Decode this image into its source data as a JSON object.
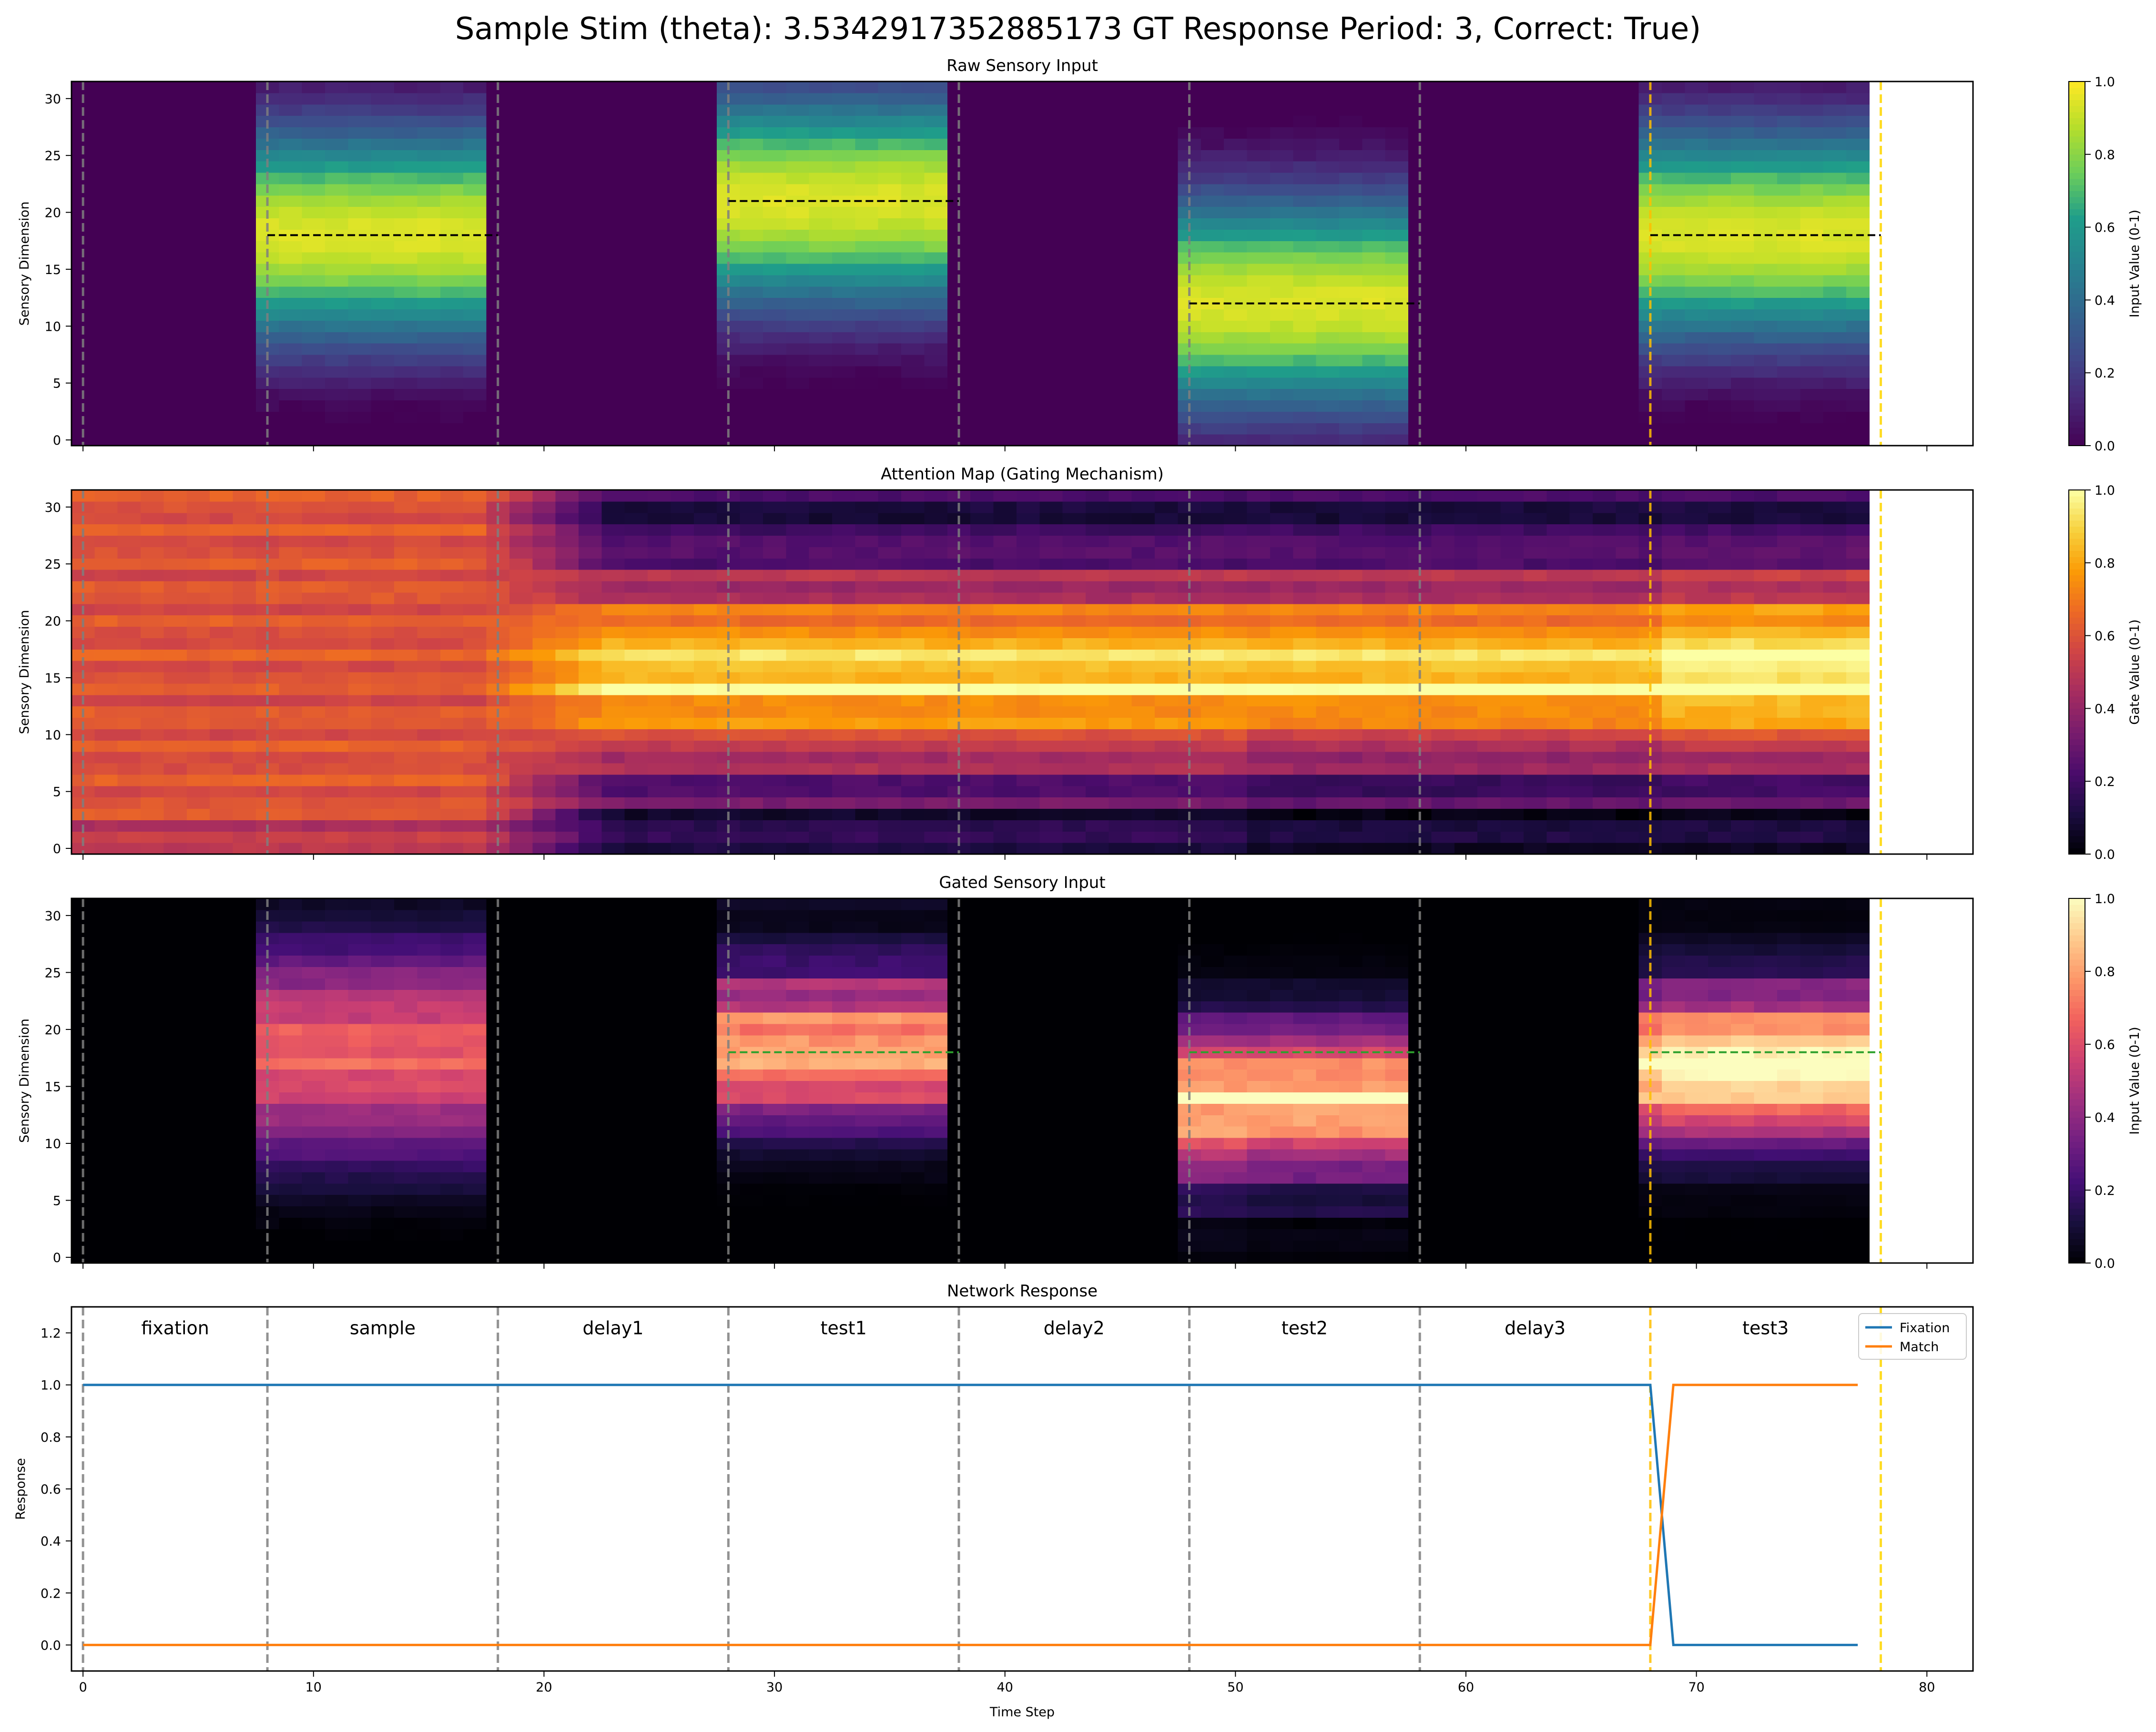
{
  "chart_data": {
    "suptitle": "Sample Stim (theta): 3.5342917352885173  GT Response Period: 3, Correct: True)",
    "x_label": "Time Step",
    "x_ticks": [
      0,
      10,
      20,
      30,
      40,
      50,
      60,
      70,
      80
    ],
    "xlim": [
      -0.5,
      82
    ],
    "phase_boundaries": [
      0,
      8,
      18,
      28,
      38,
      48,
      58,
      68
    ],
    "response_marker": 78,
    "phases": [
      {
        "name": "fixation",
        "start": 0,
        "end": 8
      },
      {
        "name": "sample",
        "start": 8,
        "end": 18
      },
      {
        "name": "delay1",
        "start": 18,
        "end": 28
      },
      {
        "name": "test1",
        "start": 28,
        "end": 38
      },
      {
        "name": "delay2",
        "start": 38,
        "end": 48
      },
      {
        "name": "test2",
        "start": 48,
        "end": 58
      },
      {
        "name": "delay3",
        "start": 58,
        "end": 68
      },
      {
        "name": "test3",
        "start": 68,
        "end": 78
      }
    ],
    "heatmaps": [
      {
        "type": "heatmap",
        "title": "Raw Sensory Input",
        "ylabel": "Sensory Dimension",
        "y_ticks": [
          0,
          5,
          10,
          15,
          20,
          25,
          30
        ],
        "ylim": [
          -0.5,
          31.5
        ],
        "colormap": "viridis",
        "colorbar_label": "Input Value (0-1)",
        "colorbar_ticks": [
          "0.0",
          "0.2",
          "0.4",
          "0.6",
          "0.8",
          "1.0"
        ],
        "stimuli": [
          {
            "start": 7.5,
            "end": 17.5,
            "center": 18
          },
          {
            "start": 27.5,
            "end": 37.5,
            "center": 21
          },
          {
            "start": 47.5,
            "end": 57.5,
            "center": 12
          },
          {
            "start": 67.5,
            "end": 77.5,
            "center": 18
          }
        ],
        "center_lines": [
          {
            "x0": 8,
            "x1": 18,
            "y": 18,
            "color": "#000000"
          },
          {
            "x0": 28,
            "x1": 38,
            "y": 21,
            "color": "#000000"
          },
          {
            "x0": 48,
            "x1": 58,
            "y": 12,
            "color": "#000000"
          },
          {
            "x0": 68,
            "x1": 78,
            "y": 18,
            "color": "#000000"
          }
        ]
      },
      {
        "type": "heatmap",
        "title": "Attention Map (Gating Mechanism)",
        "ylabel": "Sensory Dimension",
        "y_ticks": [
          0,
          5,
          10,
          15,
          20,
          25,
          30
        ],
        "ylim": [
          -0.5,
          31.5
        ],
        "colormap": "inferno",
        "colorbar_label": "Gate Value (0-1)",
        "colorbar_ticks": [
          "0.0",
          "0.2",
          "0.4",
          "0.6",
          "0.8",
          "1.0"
        ],
        "center_lines": []
      },
      {
        "type": "heatmap",
        "title": "Gated Sensory Input",
        "ylabel": "Sensory Dimension",
        "y_ticks": [
          0,
          5,
          10,
          15,
          20,
          25,
          30
        ],
        "ylim": [
          -0.5,
          31.5
        ],
        "colormap": "magma",
        "colorbar_label": "Input Value (0-1)",
        "colorbar_ticks": [
          "0.0",
          "0.2",
          "0.4",
          "0.6",
          "0.8",
          "1.0"
        ],
        "center_lines": [
          {
            "x0": 28,
            "x1": 38,
            "y": 18,
            "color": "#2ca02c"
          },
          {
            "x0": 48,
            "x1": 58,
            "y": 18,
            "color": "#2ca02c"
          },
          {
            "x0": 68,
            "x1": 78,
            "y": 18,
            "color": "#2ca02c"
          }
        ]
      }
    ],
    "response": {
      "type": "line",
      "title": "Network Response",
      "ylabel": "Response",
      "y_ticks": [
        "0.0",
        "0.2",
        "0.4",
        "0.6",
        "0.8",
        "1.0",
        "1.2"
      ],
      "ylim": [
        -0.1,
        1.3
      ],
      "legend_position": "upper right",
      "series": [
        {
          "name": "Fixation",
          "color": "#1f77b4",
          "points": [
            [
              0,
              1
            ],
            [
              68,
              1
            ],
            [
              69,
              0
            ],
            [
              77,
              0
            ]
          ]
        },
        {
          "name": "Match",
          "color": "#ff7f0e",
          "points": [
            [
              0,
              0
            ],
            [
              68,
              0
            ],
            [
              69,
              1
            ],
            [
              77,
              1
            ]
          ]
        }
      ]
    }
  }
}
